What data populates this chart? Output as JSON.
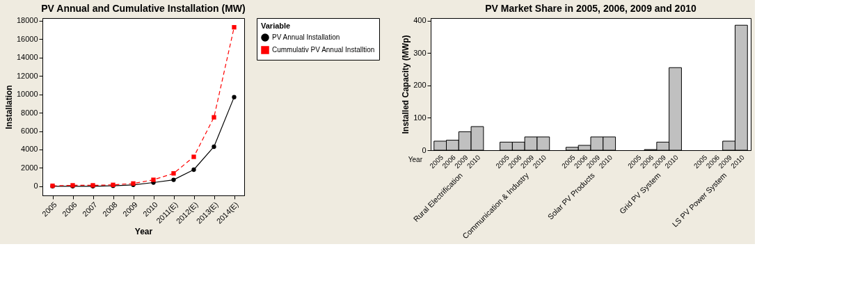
{
  "chart_data": [
    {
      "type": "line",
      "title": "PV Annual and Cumulative Installation (MW)",
      "xlabel": "Year",
      "ylabel": "Installation",
      "categories": [
        "2005",
        "2006",
        "2007",
        "2008",
        "2009",
        "2010",
        "2011(E)",
        "2012(E)",
        "2013(E)",
        "2014(E)"
      ],
      "series": [
        {
          "name": "PV Annual Installation",
          "color": "#000000",
          "marker": "circle",
          "line_style": "solid",
          "values": [
            0,
            0,
            0,
            50,
            150,
            400,
            700,
            1800,
            4300,
            9700
          ]
        },
        {
          "name": "Cummulativ PV Annual Installtion",
          "color": "#ff0000",
          "marker": "square",
          "line_style": "dashed",
          "values": [
            50,
            100,
            100,
            150,
            300,
            700,
            1400,
            3200,
            7500,
            17300
          ]
        }
      ],
      "legend_title": "Variable",
      "legend": "top right",
      "ylim": [
        -1000,
        18300
      ],
      "yticks": [
        0,
        2000,
        4000,
        6000,
        8000,
        10000,
        12000,
        14000,
        16000,
        18000
      ],
      "grid": false
    },
    {
      "type": "bar",
      "title": "PV Market Share in 2005, 2006, 2009 and 2010",
      "ylabel": "Installed Capacity (MWp)",
      "categories": [
        "Rural Electrification",
        "Communication & Industry",
        "Solar PV Products",
        "Grid PV System",
        "LS PV Power System"
      ],
      "series": [
        {
          "name": "2005",
          "color": "#c0c0c0",
          "values": [
            28,
            25,
            9,
            null,
            null
          ]
        },
        {
          "name": "2006",
          "color": "#c0c0c0",
          "values": [
            31,
            25,
            15,
            2,
            null
          ]
        },
        {
          "name": "2009",
          "color": "#c0c0c0",
          "values": [
            57,
            41,
            41,
            25,
            28
          ]
        },
        {
          "name": "2010",
          "color": "#c0c0c0",
          "values": [
            73,
            41,
            41,
            255,
            386
          ]
        }
      ],
      "annotations": [
        "Year"
      ],
      "ylim": [
        0,
        408
      ],
      "yticks": [
        0,
        100,
        200,
        300,
        400
      ],
      "grid": false
    }
  ]
}
